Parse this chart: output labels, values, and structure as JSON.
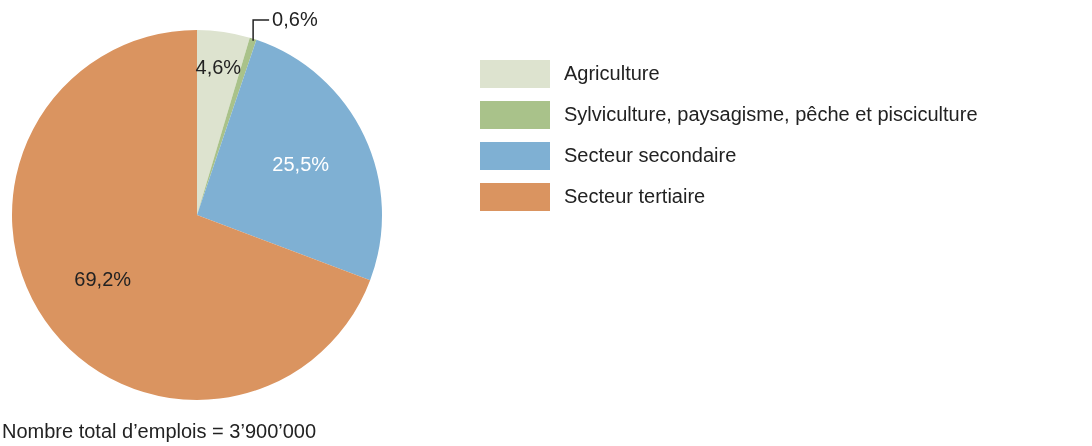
{
  "chart_data": {
    "type": "pie",
    "categories": [
      "Agriculture",
      "Sylviculture, paysagisme, pêche et pisciculture",
      "Secteur secondaire",
      "Secteur tertiaire"
    ],
    "values": [
      4.6,
      0.6,
      25.5,
      69.2
    ],
    "value_labels": [
      "4,6%",
      "0,6%",
      "25,5%",
      "69,2%"
    ],
    "colors": [
      "#dde3cf",
      "#a9c28a",
      "#7fb0d3",
      "#da9460"
    ],
    "legend": "top right",
    "annotations": [
      "Nombre total d’emplois = 3’900’000"
    ]
  }
}
